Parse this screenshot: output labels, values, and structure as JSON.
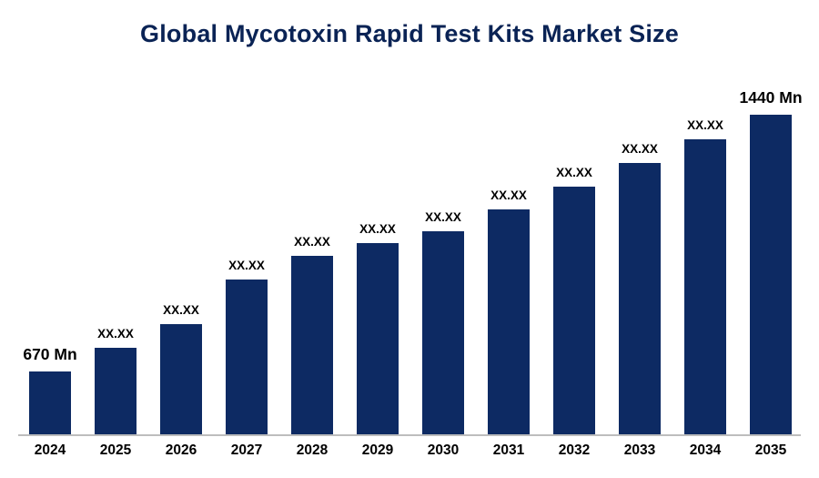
{
  "chart_data": {
    "type": "bar",
    "title": "Global Mycotoxin Rapid Test Kits Market Size",
    "categories": [
      "2024",
      "2025",
      "2026",
      "2027",
      "2028",
      "2029",
      "2030",
      "2031",
      "2032",
      "2033",
      "2034",
      "2035"
    ],
    "values": [
      670,
      740,
      810,
      945,
      1015,
      1055,
      1090,
      1155,
      1225,
      1295,
      1365,
      1440
    ],
    "labels": [
      "670 Mn",
      "XX.XX",
      "XX.XX",
      "XX.XX",
      "XX.XX",
      "XX.XX",
      "XX.XX",
      "XX.XX",
      "XX.XX",
      "XX.XX",
      "XX.XX",
      "1440 Mn"
    ],
    "first_value_label": "670 Mn",
    "last_value_label": "1440 Mn",
    "xlabel": "",
    "ylabel": "",
    "ylim": [
      480,
      1560
    ],
    "grid": false,
    "legend": "none",
    "colors": {
      "bar": "#0d2a63",
      "title": "#0a2355",
      "axis": "#bdbdbd",
      "label": "#000000",
      "background": "#ffffff"
    }
  }
}
